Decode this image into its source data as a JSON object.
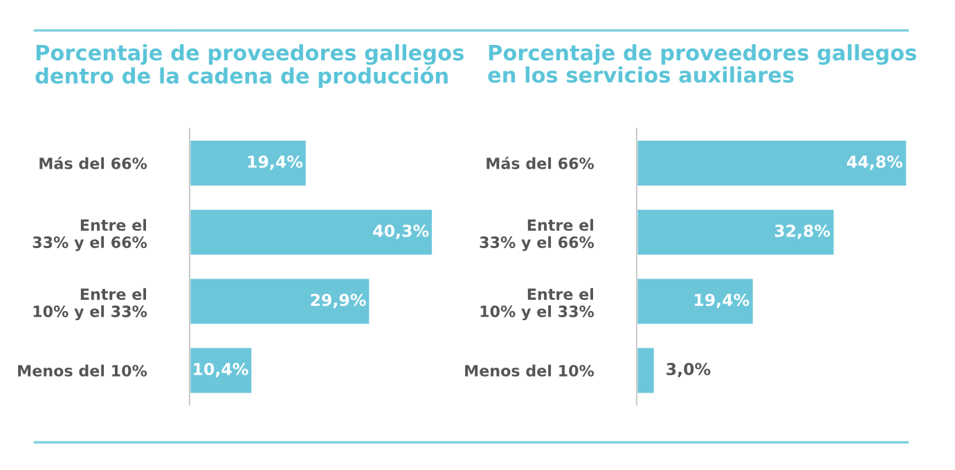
{
  "chart_data": [
    {
      "type": "bar",
      "orientation": "horizontal",
      "title": "Porcentaje de proveedores gallegos\ndentro de la cadena de producción",
      "categories": [
        "Más del 66%",
        "Entre el\n33% y el 66%",
        "Entre el\n10% y el 33%",
        "Menos del 10%"
      ],
      "values": [
        19.4,
        40.3,
        29.9,
        10.4
      ],
      "value_labels": [
        "19,4%",
        "40,3%",
        "29,9%",
        "10,4%"
      ],
      "color": "#6cc6da",
      "tick_labels": "y",
      "grid": false,
      "legend": false
    },
    {
      "type": "bar",
      "orientation": "horizontal",
      "title": "Porcentaje de proveedores gallegos\nen los servicios auxiliares",
      "categories": [
        "Más del 66%",
        "Entre el\n33% y el 66%",
        "Entre el\n10% y el 33%",
        "Menos del 10%"
      ],
      "values": [
        44.8,
        32.8,
        19.4,
        3.0
      ],
      "value_labels": [
        "44,8%",
        "32,8%",
        "19,4%",
        "3,0%"
      ],
      "color": "#6cc6da",
      "tick_labels": "y",
      "grid": false,
      "legend": false
    }
  ]
}
